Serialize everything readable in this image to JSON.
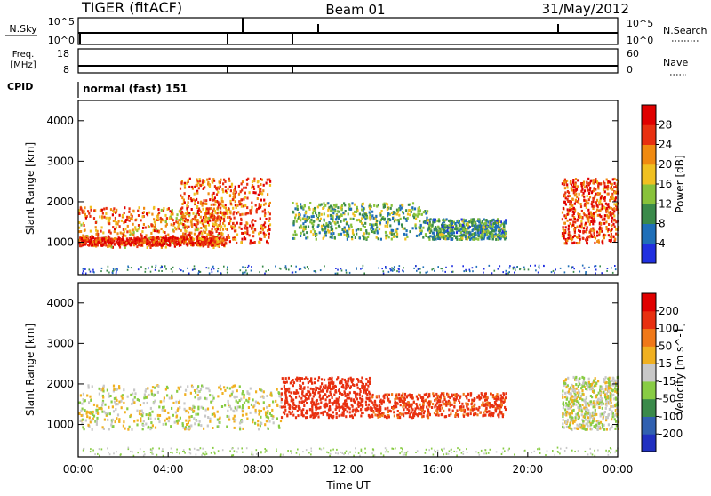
{
  "header": {
    "radar": "TIGER (fitACF)",
    "beam": "Beam 01",
    "date": "31/May/2012"
  },
  "noise_panel": {
    "left_label": "N.Sky",
    "right_label": "N.Search",
    "left_ticks": [
      "10^5",
      "10^0"
    ],
    "right_ticks": [
      "10^5",
      "10^0"
    ]
  },
  "freq_panel": {
    "left_label_1": "Freq.",
    "left_label_2": "[MHz]",
    "right_label": "Nave",
    "left_ticks": [
      "18",
      "8"
    ],
    "right_ticks": [
      "60",
      "0"
    ]
  },
  "cpid": {
    "label": "CPID",
    "value": "normal (fast) 151"
  },
  "x_axis": {
    "label": "Time UT",
    "ticks": [
      "00:00",
      "04:00",
      "08:00",
      "12:00",
      "16:00",
      "20:00",
      "00:00"
    ]
  },
  "chart_data": [
    {
      "type": "heatmap",
      "title": "",
      "quantity": "Power",
      "colorbar_label": "Power [dB]",
      "colorbar_ticks": [
        "4",
        "8",
        "12",
        "16",
        "20",
        "24",
        "28"
      ],
      "colorbar_colors": [
        "#2030e0",
        "#1f6fb8",
        "#3a8a4a",
        "#88c23a",
        "#f0c020",
        "#f08a10",
        "#e83010",
        "#e00000"
      ],
      "xlabel": "Time UT",
      "ylabel": "Slant Range [km]",
      "xlim": [
        0,
        24
      ],
      "ylim": [
        200,
        4500
      ],
      "yticks": [
        "1000",
        "2000",
        "3000",
        "4000"
      ],
      "regions": [
        {
          "t": [
            0,
            6.5
          ],
          "range_km": [
            900,
            1900
          ],
          "power_db": 22
        },
        {
          "t": [
            0,
            6.5
          ],
          "range_km": [
            950,
            1150
          ],
          "power_db": 28
        },
        {
          "t": [
            4.5,
            8.5
          ],
          "range_km": [
            1000,
            2600
          ],
          "power_db": 24
        },
        {
          "t": [
            9.5,
            15.5
          ],
          "range_km": [
            1100,
            2000
          ],
          "power_db": 12
        },
        {
          "t": [
            15.5,
            19
          ],
          "range_km": [
            1100,
            1600
          ],
          "power_db": 10
        },
        {
          "t": [
            21.5,
            24
          ],
          "range_km": [
            1000,
            2600
          ],
          "power_db": 26
        }
      ]
    },
    {
      "type": "heatmap",
      "title": "",
      "quantity": "Velocity",
      "colorbar_label": "Velocity [m s^-1]",
      "colorbar_ticks": [
        "200",
        "100",
        "50",
        "15",
        "-15",
        "-50",
        "-100",
        "-200"
      ],
      "colorbar_colors": [
        "#2030c0",
        "#3060b0",
        "#3a8a4a",
        "#88cc44",
        "#c8c8c8",
        "#f0b020",
        "#f07818",
        "#e83010",
        "#e00000"
      ],
      "xlabel": "Time UT",
      "ylabel": "Slant Range [km]",
      "xlim": [
        0,
        24
      ],
      "ylim": [
        200,
        4500
      ],
      "yticks": [
        "1000",
        "2000",
        "3000",
        "4000"
      ],
      "regions": [
        {
          "t": [
            0,
            9
          ],
          "range_km": [
            900,
            2000
          ],
          "velocity_ms": 0
        },
        {
          "t": [
            9,
            13
          ],
          "range_km": [
            1200,
            2200
          ],
          "velocity_ms": -150
        },
        {
          "t": [
            13,
            19
          ],
          "range_km": [
            1200,
            1800
          ],
          "velocity_ms": -120
        },
        {
          "t": [
            21.5,
            24
          ],
          "range_km": [
            900,
            2200
          ],
          "velocity_ms": 0
        }
      ]
    }
  ]
}
